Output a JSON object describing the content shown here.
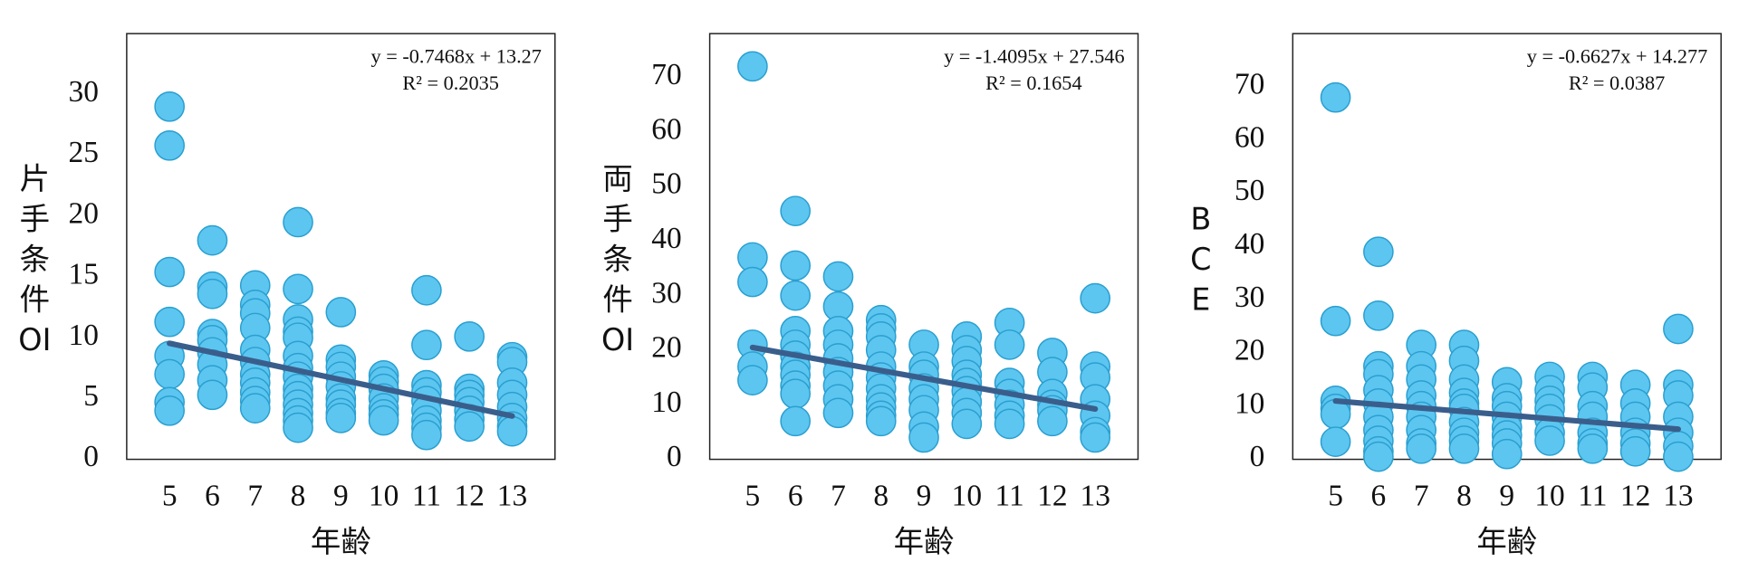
{
  "chart_data": [
    {
      "type": "scatter",
      "x_label": "年齢",
      "y_label": [
        "片",
        "手",
        "条",
        "件",
        "OI"
      ],
      "equation": "y = -0.7468x + 13.27",
      "r2": "R² = 0.2035",
      "color": "#5cc6f0",
      "edge_color": "#2a9fd0",
      "grid": false,
      "xlim": [
        4,
        14
      ],
      "xticks": [
        5,
        6,
        7,
        8,
        9,
        10,
        11,
        12,
        13
      ],
      "ylim": [
        0,
        35
      ],
      "yticks": [
        0,
        5,
        10,
        15,
        20,
        25,
        30
      ],
      "x": [
        5,
        5,
        5,
        5,
        5,
        5,
        5,
        5,
        6,
        6,
        6,
        6,
        6,
        6,
        6,
        6,
        6,
        7,
        7,
        7,
        7,
        7,
        7,
        7,
        7,
        7,
        7,
        7,
        8,
        8,
        8,
        8,
        8,
        8,
        8,
        8,
        8,
        8,
        8,
        8,
        8,
        8,
        9,
        9,
        9,
        9,
        9,
        9,
        9,
        9,
        9,
        10,
        10,
        10,
        10,
        10,
        10,
        10,
        11,
        11,
        11,
        11,
        11,
        11,
        11,
        11,
        11,
        12,
        12,
        12,
        12,
        12,
        12,
        12,
        13,
        13,
        13,
        13,
        13,
        13,
        13,
        13
      ],
      "values": [
        29,
        25.8,
        15.4,
        11.3,
        8.5,
        7,
        4.7,
        4,
        18,
        14.2,
        13.6,
        10.3,
        9.8,
        8.8,
        7.8,
        6.5,
        5.3,
        14.3,
        12.7,
        12,
        10.8,
        9,
        8,
        7,
        6.3,
        5.5,
        4.8,
        4.2,
        19.5,
        14,
        11.5,
        10.5,
        10,
        8.5,
        7.5,
        6.8,
        5.8,
        5.2,
        4.5,
        3.8,
        3.2,
        2.6,
        12.1,
        8.2,
        7.6,
        6.8,
        6,
        5,
        4.5,
        3.8,
        3.4,
        6.9,
        6.4,
        5.8,
        5,
        4.2,
        3.7,
        3.2,
        13.9,
        9.4,
        6.1,
        5.5,
        4.8,
        4,
        3.2,
        2.6,
        2,
        10.1,
        5.8,
        5.3,
        4.7,
        4,
        3.3,
        2.7,
        8.4,
        8,
        6.3,
        5.3,
        4.3,
        3.4,
        2.7,
        2.3
      ],
      "trendline": {
        "x": [
          5,
          13
        ],
        "slope": -0.7468,
        "intercept": 13.27,
        "color": "#3a5e8c"
      }
    },
    {
      "type": "scatter",
      "x_label": "年齢",
      "y_label": [
        "両",
        "手",
        "条",
        "件",
        "OI"
      ],
      "equation": "y = -1.4095x + 27.546",
      "r2": "R² = 0.1654",
      "color": "#5cc6f0",
      "edge_color": "#2a9fd0",
      "grid": false,
      "xlim": [
        4,
        14
      ],
      "xticks": [
        5,
        6,
        7,
        8,
        9,
        10,
        11,
        12,
        13
      ],
      "ylim": [
        0,
        78
      ],
      "yticks": [
        0,
        10,
        20,
        30,
        40,
        50,
        60,
        70
      ],
      "x": [
        5,
        5,
        5,
        5,
        5,
        5,
        6,
        6,
        6,
        6,
        6,
        6,
        6,
        6,
        6,
        6,
        6,
        7,
        7,
        7,
        7,
        7,
        7,
        7,
        7,
        7,
        8,
        8,
        8,
        8,
        8,
        8,
        8,
        8,
        8,
        8,
        8,
        9,
        9,
        9,
        9,
        9,
        9,
        9,
        9,
        10,
        10,
        10,
        10,
        10,
        10,
        10,
        10,
        10,
        11,
        11,
        11,
        11,
        11,
        11,
        11,
        12,
        12,
        12,
        12,
        12,
        12,
        13,
        13,
        13,
        13,
        13,
        13,
        13
      ],
      "values": [
        72,
        37,
        32.5,
        21,
        17,
        14.5,
        45.5,
        35.5,
        30,
        23.5,
        21,
        19,
        17,
        15.5,
        13.5,
        12,
        7,
        33.5,
        28,
        23.5,
        21,
        18.5,
        16,
        13.5,
        11,
        8.5,
        25.5,
        24,
        22.5,
        20,
        17,
        15,
        13,
        11,
        9.5,
        8,
        7,
        21,
        17,
        15.5,
        13,
        11,
        9,
        6,
        4,
        22.5,
        20,
        18,
        15.5,
        14,
        12.5,
        10.5,
        8.5,
        6.5,
        25,
        21,
        14,
        12,
        10,
        8,
        6.5,
        19.5,
        16,
        12,
        10,
        9,
        7,
        29.5,
        17,
        15,
        11,
        8,
        5,
        4
      ],
      "trendline": {
        "x": [
          5,
          13
        ],
        "slope": -1.4095,
        "intercept": 27.546,
        "color": "#3a5e8c"
      }
    },
    {
      "type": "scatter",
      "x_label": "年齢",
      "y_label": [
        "B",
        "C",
        "E"
      ],
      "equation": "y = -0.6627x + 14.277",
      "r2": "R² = 0.0387",
      "color": "#5cc6f0",
      "edge_color": "#2a9fd0",
      "grid": false,
      "xlim": [
        4,
        14
      ],
      "xticks": [
        5,
        6,
        7,
        8,
        9,
        10,
        11,
        12,
        13
      ],
      "ylim": [
        0,
        80
      ],
      "yticks": [
        0,
        10,
        20,
        30,
        40,
        50,
        60,
        70
      ],
      "x": [
        5,
        5,
        5,
        5,
        5,
        5,
        6,
        6,
        6,
        6,
        6,
        6,
        6,
        6,
        6,
        6,
        6,
        7,
        7,
        7,
        7,
        7,
        7,
        7,
        7,
        7,
        8,
        8,
        8,
        8,
        8,
        8,
        8,
        8,
        8,
        8,
        9,
        9,
        9,
        9,
        9,
        9,
        9,
        9,
        10,
        10,
        10,
        10,
        10,
        10,
        10,
        11,
        11,
        11,
        11,
        11,
        11,
        11,
        12,
        12,
        12,
        12,
        12,
        12,
        13,
        13,
        13,
        13,
        13,
        13,
        13
      ],
      "values": [
        68,
        26,
        11,
        9.5,
        8.5,
        3.3,
        39,
        27,
        17.5,
        16,
        13,
        10.5,
        8,
        5.5,
        3.5,
        1.5,
        0.5,
        21.5,
        17.5,
        15,
        12,
        10,
        8,
        5.5,
        3,
        2,
        21.5,
        18.5,
        15,
        12.5,
        10.5,
        9.5,
        7,
        5,
        3.5,
        2,
        14.5,
        11.5,
        10,
        8,
        6,
        4.5,
        3,
        1,
        15.5,
        13,
        11,
        9.5,
        7.5,
        5,
        3.5,
        15.5,
        13.5,
        10,
        8,
        5,
        3,
        2,
        14,
        10.5,
        8,
        5,
        3,
        1.5,
        24.5,
        14,
        12,
        8,
        5,
        2.5,
        0.5
      ],
      "trendline": {
        "x": [
          5,
          13
        ],
        "slope": -0.6627,
        "intercept": 14.277,
        "color": "#3a5e8c"
      }
    }
  ]
}
